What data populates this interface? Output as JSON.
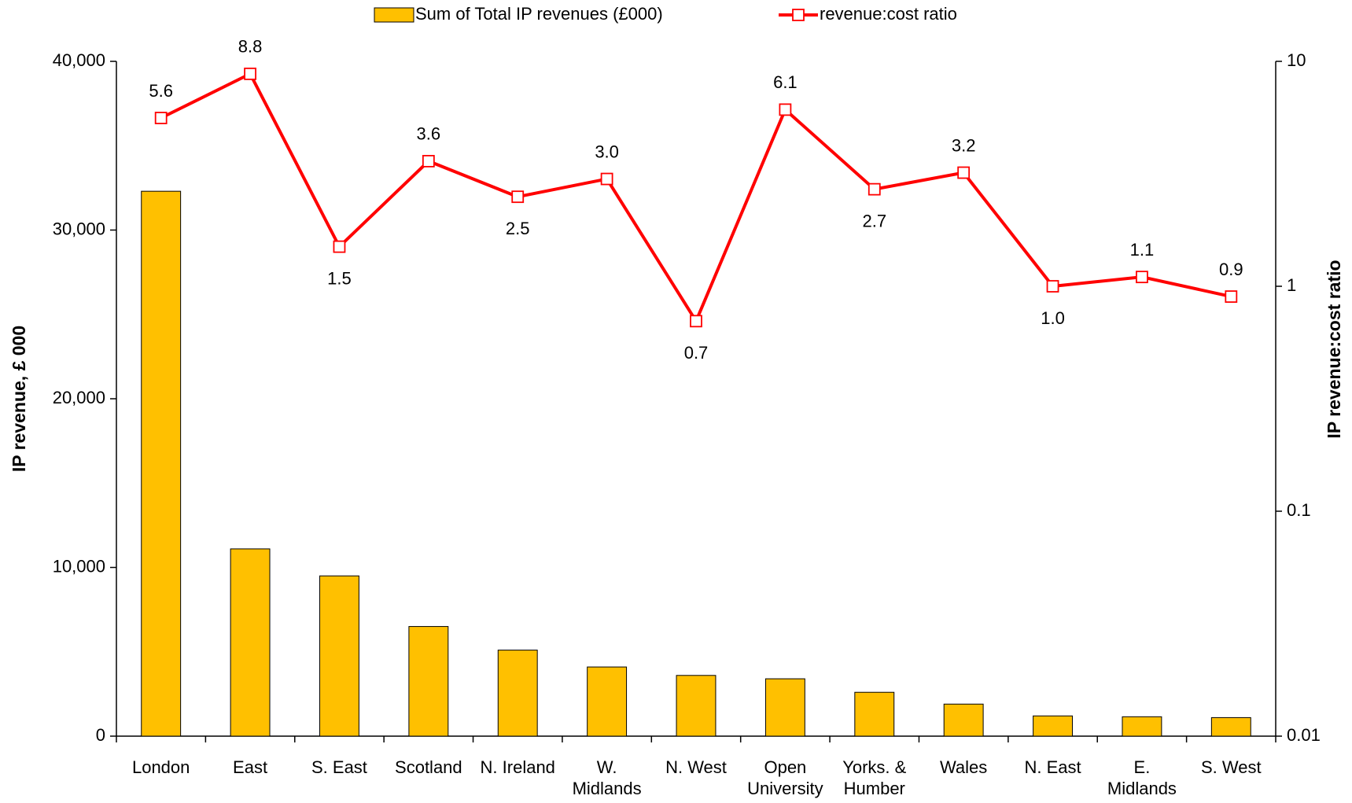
{
  "chart_data": {
    "type": "bar-line",
    "categories": [
      "London",
      "East",
      "S. East",
      "Scotland",
      "N. Ireland",
      "W.\nMidlands",
      "N. West",
      "Open\nUniversity",
      "Yorks. &\nHumber",
      "Wales",
      "N. East",
      "E.\nMidlands",
      "S. West"
    ],
    "y_label": "IP revenue, £ 000",
    "y2_label": "IP revenue:cost ratio",
    "ylim": [
      0,
      40000
    ],
    "yticks": [
      0,
      {
        "value": 10000,
        "label": "10,000"
      },
      {
        "value": 20000,
        "label": "20,000"
      },
      {
        "value": 30000,
        "label": "30,000"
      },
      {
        "value": 40000,
        "label": "40,000"
      }
    ],
    "y2lim": [
      0.01,
      10
    ],
    "y2ticks": [
      0.01,
      0.1,
      1,
      10
    ],
    "y2scale": "log",
    "legend": "top",
    "series": [
      {
        "name": "Sum of Total IP revenues  (£000)",
        "type": "bar",
        "color": "#ffc000",
        "values": [
          32300,
          11100,
          9500,
          6500,
          5100,
          4100,
          3600,
          3400,
          2600,
          1900,
          1200,
          1150,
          1100
        ]
      },
      {
        "name": "revenue:cost  ratio",
        "type": "line",
        "axis": "y2",
        "color": "#ff0000",
        "values": [
          5.6,
          8.8,
          1.5,
          3.6,
          2.5,
          3.0,
          0.7,
          6.1,
          2.7,
          3.2,
          1.0,
          1.1,
          0.9
        ],
        "value_labels": [
          "5.6",
          "8.8",
          "1.5",
          "3.6",
          "2.5",
          "3.0",
          "0.7",
          "6.1",
          "2.7",
          "3.2",
          "1.0",
          "1.1",
          "0.9"
        ]
      }
    ]
  }
}
